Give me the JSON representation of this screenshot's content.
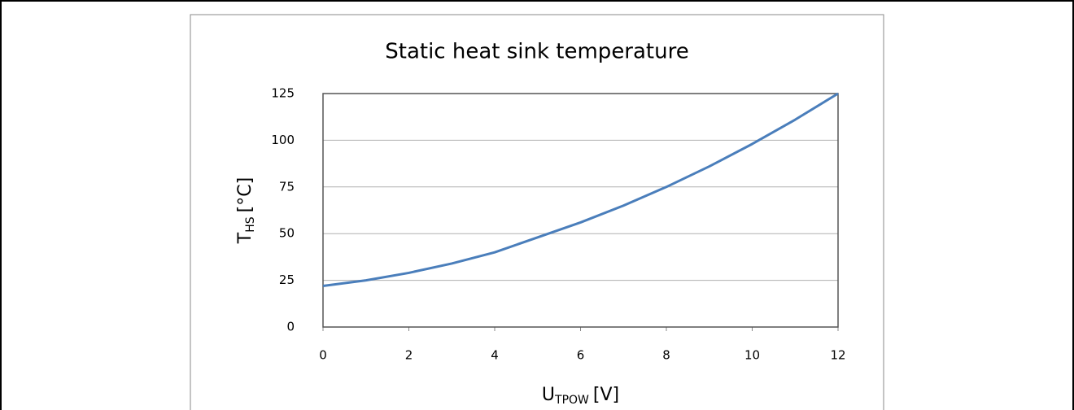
{
  "chart_data": {
    "type": "line",
    "title": "Static heat sink temperature",
    "xlabel": [
      "U",
      "TPOW",
      "[V]"
    ],
    "ylabel": [
      "T",
      "HS",
      "[°C]"
    ],
    "series": [
      {
        "name": "T_HS",
        "color": "#4a7ebb",
        "x": [
          0,
          1,
          2,
          3,
          4,
          5,
          6,
          7,
          8,
          9,
          10,
          11,
          12
        ],
        "values": [
          22,
          25,
          29,
          34,
          40,
          48,
          56,
          65,
          75,
          86,
          98,
          111,
          125
        ]
      }
    ],
    "xlim": [
      0,
      12
    ],
    "xticks": [
      0,
      2,
      4,
      6,
      8,
      10,
      12
    ],
    "ylim": [
      0,
      125
    ],
    "yticks": [
      0,
      25,
      50,
      75,
      100,
      125
    ],
    "grid": true
  }
}
